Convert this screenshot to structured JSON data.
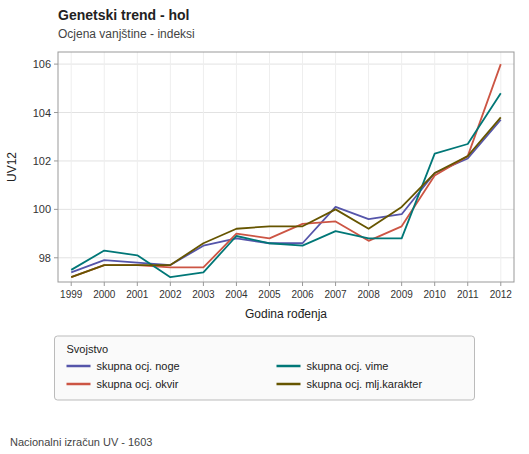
{
  "chart_data": {
    "type": "line",
    "title": "Genetski trend - hol",
    "subtitle": "Ocjena vanjštine - indeksi",
    "x_label": "Godina rođenja",
    "y_label": "UV12",
    "legend_title": "Svojstvo",
    "footnote": "Nacionalni izračun UV - 1603",
    "x": [
      1999,
      2000,
      2001,
      2002,
      2003,
      2004,
      2005,
      2006,
      2007,
      2008,
      2009,
      2010,
      2011,
      2012
    ],
    "series": [
      {
        "name": "skupna ocj. noge",
        "color": "#5555aa",
        "values": [
          97.4,
          97.9,
          97.8,
          97.7,
          98.5,
          98.8,
          98.6,
          98.6,
          100.1,
          99.6,
          99.8,
          101.5,
          102.1,
          103.7
        ]
      },
      {
        "name": "skupna ocj. okvir",
        "color": "#cc5544",
        "values": [
          97.2,
          97.7,
          97.7,
          97.6,
          97.6,
          99.0,
          98.8,
          99.4,
          99.5,
          98.7,
          99.3,
          101.4,
          102.2,
          106.0
        ]
      },
      {
        "name": "skupna ocj. vime",
        "color": "#007777",
        "values": [
          97.5,
          98.3,
          98.1,
          97.2,
          97.4,
          98.9,
          98.6,
          98.5,
          99.1,
          98.8,
          98.8,
          102.3,
          102.7,
          104.8
        ]
      },
      {
        "name": "skupna ocj. mlj.karakter",
        "color": "#665500",
        "values": [
          97.2,
          97.7,
          97.7,
          97.7,
          98.6,
          99.2,
          99.3,
          99.3,
          100.0,
          99.2,
          100.1,
          101.5,
          102.2,
          103.8
        ]
      }
    ],
    "xlim": [
      1998.6,
      2012.4
    ],
    "xticks": [
      1999,
      2000,
      2001,
      2002,
      2003,
      2004,
      2005,
      2006,
      2007,
      2008,
      2009,
      2010,
      2011,
      2012
    ],
    "ylim": [
      97.0,
      106.5
    ],
    "yticks": [
      98,
      100,
      102,
      104,
      106
    ],
    "grid": true,
    "legend": "bottom"
  }
}
